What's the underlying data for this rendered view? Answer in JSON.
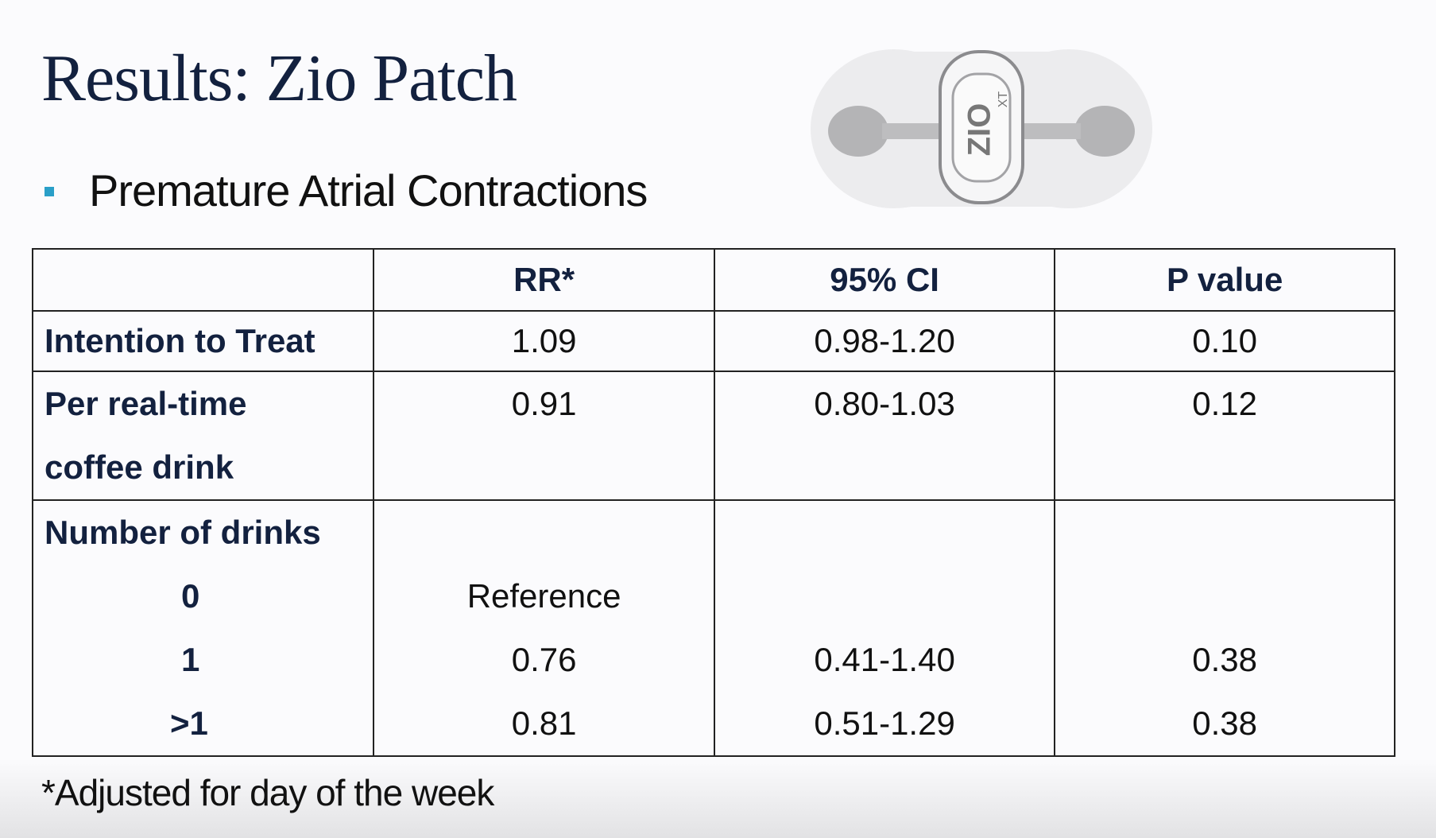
{
  "header": {
    "title": "Results: Zio Patch",
    "bullet": "Premature Atrial Contractions"
  },
  "device": {
    "brand": "ZIO",
    "model": "XT"
  },
  "table": {
    "columns": [
      "RR*",
      "95% CI",
      "P value"
    ],
    "rows": [
      {
        "label": [
          "Intention to Treat"
        ],
        "rr": "1.09",
        "ci": "0.98-1.20",
        "p": "0.10"
      },
      {
        "label": [
          "Per real-time",
          "coffee drink"
        ],
        "rr": "0.91",
        "ci": "0.80-1.03",
        "p": "0.12"
      }
    ],
    "group": {
      "label": "Number of drinks",
      "levels": [
        {
          "level": "0",
          "rr": "Reference"
        },
        {
          "level": "1",
          "rr": "0.76",
          "ci": "0.41-1.40",
          "p": "0.38"
        },
        {
          "level": ">1",
          "rr": "0.81",
          "ci": "0.51-1.29",
          "p": "0.38"
        }
      ]
    }
  },
  "footnote": "*Adjusted for day of the week"
}
